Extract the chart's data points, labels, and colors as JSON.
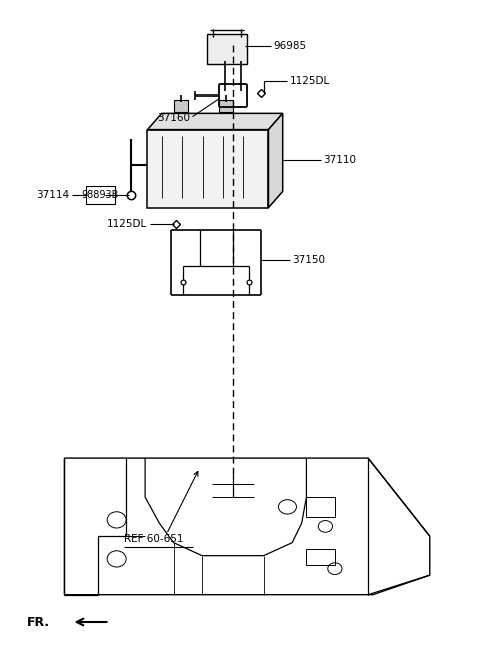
{
  "background_color": "#ffffff",
  "line_color": "#000000",
  "text_color": "#000000",
  "label_96985": "96985",
  "label_1125DL": "1125DL",
  "label_37160": "37160",
  "label_37110": "37110",
  "label_37114": "37114",
  "label_98893B": "98893B",
  "label_37150": "37150",
  "ref_label": "REF 60-651",
  "fr_label": "FR.",
  "fig_width": 4.8,
  "fig_height": 6.56,
  "dpi": 100
}
